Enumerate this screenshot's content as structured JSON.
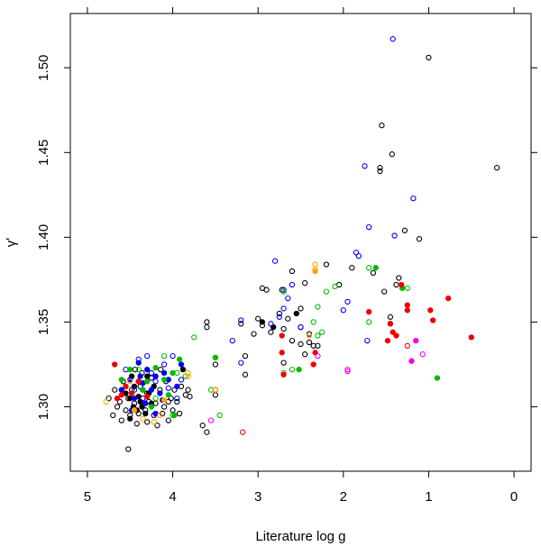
{
  "chart_data": {
    "type": "scatter",
    "xlabel": "Literature log g",
    "ylabel": "γ'",
    "xlim": [
      5.2,
      -0.2
    ],
    "ylim": [
      1.262,
      1.532
    ],
    "x_reversed": true,
    "x_ticks": [
      5,
      4,
      3,
      2,
      1,
      0
    ],
    "x_tick_labels": [
      "5",
      "4",
      "3",
      "2",
      "1",
      "0"
    ],
    "y_ticks": [
      1.3,
      1.35,
      1.4,
      1.45,
      1.5
    ],
    "y_tick_labels": [
      "1.30",
      "1.35",
      "1.40",
      "1.45",
      "1.50"
    ],
    "box": true,
    "grid": false,
    "legend": "none",
    "series": [
      {
        "color": "#000000",
        "marker": "open-circle",
        "points": [
          [
            1.0,
            1.506
          ],
          [
            1.55,
            1.466
          ],
          [
            0.2,
            1.441
          ],
          [
            1.43,
            1.449
          ],
          [
            1.57,
            1.441
          ],
          [
            1.57,
            1.439
          ],
          [
            1.28,
            1.404
          ],
          [
            1.11,
            1.399
          ],
          [
            1.9,
            1.382
          ],
          [
            2.2,
            1.384
          ],
          [
            1.35,
            1.376
          ],
          [
            1.38,
            1.372
          ],
          [
            1.52,
            1.368
          ],
          [
            2.05,
            1.372
          ],
          [
            2.45,
            1.373
          ],
          [
            2.6,
            1.38
          ],
          [
            2.72,
            1.369
          ],
          [
            2.9,
            1.369
          ],
          [
            2.95,
            1.37
          ],
          [
            3.2,
            1.349
          ],
          [
            3.0,
            1.352
          ],
          [
            2.85,
            1.344
          ],
          [
            2.7,
            1.346
          ],
          [
            2.6,
            1.339
          ],
          [
            2.5,
            1.347
          ],
          [
            2.4,
            1.343
          ],
          [
            2.3,
            1.336
          ],
          [
            2.5,
            1.337
          ],
          [
            3.6,
            1.347
          ],
          [
            3.6,
            1.35
          ],
          [
            3.05,
            1.343
          ],
          [
            2.95,
            1.348
          ],
          [
            2.75,
            1.355
          ],
          [
            2.65,
            1.352
          ],
          [
            2.5,
            1.358
          ],
          [
            2.35,
            1.336
          ],
          [
            3.15,
            1.33
          ],
          [
            3.15,
            1.319
          ],
          [
            3.5,
            1.325
          ],
          [
            3.5,
            1.31
          ],
          [
            3.5,
            1.307
          ],
          [
            3.6,
            1.285
          ],
          [
            3.65,
            1.289
          ],
          [
            4.52,
            1.275
          ],
          [
            1.45,
            1.353
          ],
          [
            1.45,
            1.349
          ],
          [
            1.65,
            1.379
          ],
          [
            2.7,
            1.326
          ],
          [
            2.4,
            1.338
          ],
          [
            2.45,
            1.331
          ],
          [
            4.75,
            1.305
          ],
          [
            4.7,
            1.295
          ],
          [
            4.68,
            1.31
          ],
          [
            4.65,
            1.3
          ],
          [
            4.6,
            1.292
          ],
          [
            4.55,
            1.298
          ],
          [
            4.52,
            1.305
          ],
          [
            4.5,
            1.295
          ],
          [
            4.48,
            1.31
          ],
          [
            4.45,
            1.302
          ],
          [
            4.42,
            1.29
          ],
          [
            4.4,
            1.296
          ],
          [
            4.38,
            1.312
          ],
          [
            4.35,
            1.305
          ],
          [
            4.32,
            1.298
          ],
          [
            4.3,
            1.291
          ],
          [
            4.28,
            1.303
          ],
          [
            4.25,
            1.317
          ],
          [
            4.22,
            1.295
          ],
          [
            4.2,
            1.302
          ],
          [
            4.18,
            1.289
          ],
          [
            4.15,
            1.31
          ],
          [
            4.12,
            1.296
          ],
          [
            4.1,
            1.3
          ],
          [
            4.08,
            1.315
          ],
          [
            4.05,
            1.292
          ],
          [
            4.02,
            1.305
          ],
          [
            4.0,
            1.298
          ],
          [
            3.98,
            1.31
          ],
          [
            3.95,
            1.303
          ],
          [
            3.92,
            1.296
          ],
          [
            3.9,
            1.312
          ],
          [
            3.85,
            1.307
          ],
          [
            3.8,
            1.306
          ],
          [
            4.58,
            1.315
          ],
          [
            4.36,
            1.32
          ],
          [
            4.14,
            1.322
          ],
          [
            4.44,
            1.322
          ],
          [
            3.82,
            1.31
          ],
          [
            4.62,
            1.303
          ],
          [
            4.3,
            1.308
          ],
          [
            4.05,
            1.303
          ]
        ]
      },
      {
        "color": "#000000",
        "marker": "filled-circle",
        "points": [
          [
            4.5,
            1.305
          ],
          [
            4.45,
            1.312
          ],
          [
            4.42,
            1.298
          ],
          [
            4.4,
            1.315
          ],
          [
            4.38,
            1.303
          ],
          [
            4.35,
            1.31
          ],
          [
            4.32,
            1.296
          ],
          [
            4.5,
            1.293
          ],
          [
            4.48,
            1.318
          ],
          [
            4.28,
            1.308
          ],
          [
            4.25,
            1.302
          ],
          [
            4.4,
            1.306
          ],
          [
            4.55,
            1.308
          ],
          [
            4.36,
            1.3
          ],
          [
            4.46,
            1.3
          ],
          [
            3.88,
            1.322
          ],
          [
            4.22,
            1.312
          ],
          [
            4.3,
            1.318
          ],
          [
            2.95,
            1.35
          ],
          [
            2.82,
            1.347
          ],
          [
            2.55,
            1.355
          ]
        ]
      },
      {
        "color": "#0000ee",
        "marker": "open-circle",
        "points": [
          [
            1.42,
            1.517
          ],
          [
            1.75,
            1.442
          ],
          [
            1.18,
            1.423
          ],
          [
            1.7,
            1.406
          ],
          [
            1.4,
            1.401
          ],
          [
            1.85,
            1.391
          ],
          [
            1.82,
            1.389
          ],
          [
            2.0,
            1.357
          ],
          [
            1.95,
            1.362
          ],
          [
            2.6,
            1.372
          ],
          [
            2.7,
            1.369
          ],
          [
            2.65,
            1.364
          ],
          [
            2.8,
            1.386
          ],
          [
            3.2,
            1.351
          ],
          [
            2.85,
            1.349
          ],
          [
            2.75,
            1.353
          ],
          [
            2.7,
            1.358
          ],
          [
            2.5,
            1.347
          ],
          [
            1.72,
            1.339
          ],
          [
            3.3,
            1.339
          ],
          [
            3.2,
            1.326
          ],
          [
            4.3,
            1.33
          ],
          [
            4.2,
            1.315
          ],
          [
            4.4,
            1.328
          ],
          [
            4.1,
            1.325
          ],
          [
            4.0,
            1.33
          ],
          [
            3.9,
            1.316
          ],
          [
            4.45,
            1.31
          ],
          [
            4.25,
            1.32
          ],
          [
            4.35,
            1.305
          ],
          [
            4.55,
            1.322
          ],
          [
            4.05,
            1.311
          ],
          [
            3.95,
            1.305
          ]
        ]
      },
      {
        "color": "#0000ee",
        "marker": "filled-circle",
        "points": [
          [
            4.4,
            1.326
          ],
          [
            4.3,
            1.322
          ],
          [
            4.2,
            1.318
          ],
          [
            4.5,
            1.316
          ],
          [
            4.1,
            1.32
          ],
          [
            4.35,
            1.314
          ],
          [
            4.25,
            1.31
          ],
          [
            4.45,
            1.305
          ],
          [
            4.15,
            1.308
          ],
          [
            4.05,
            1.316
          ],
          [
            3.95,
            1.312
          ],
          [
            4.6,
            1.31
          ],
          [
            4.48,
            1.298
          ],
          [
            4.32,
            1.302
          ],
          [
            3.9,
            1.325
          ],
          [
            4.2,
            1.296
          ],
          [
            4.38,
            1.318
          ],
          [
            4.12,
            1.304
          ]
        ]
      },
      {
        "color": "#00bb00",
        "marker": "open-circle",
        "points": [
          [
            1.7,
            1.382
          ],
          [
            2.1,
            1.371
          ],
          [
            2.2,
            1.368
          ],
          [
            2.7,
            1.368
          ],
          [
            2.3,
            1.359
          ],
          [
            2.25,
            1.344
          ],
          [
            2.35,
            1.35
          ],
          [
            1.7,
            1.35
          ],
          [
            1.25,
            1.37
          ],
          [
            2.3,
            1.342
          ],
          [
            2.6,
            1.322
          ],
          [
            3.75,
            1.341
          ],
          [
            3.5,
            1.329
          ],
          [
            3.45,
            1.295
          ],
          [
            3.55,
            1.31
          ],
          [
            2.7,
            1.32
          ],
          [
            4.4,
            1.322
          ],
          [
            4.1,
            1.33
          ],
          [
            3.95,
            1.32
          ],
          [
            4.2,
            1.305
          ],
          [
            3.85,
            1.318
          ],
          [
            4.0,
            1.295
          ],
          [
            4.55,
            1.312
          ]
        ]
      },
      {
        "color": "#00bb00",
        "marker": "filled-circle",
        "points": [
          [
            1.62,
            1.382
          ],
          [
            1.31,
            1.37
          ],
          [
            0.9,
            1.317
          ],
          [
            3.5,
            1.329
          ],
          [
            2.52,
            1.322
          ],
          [
            4.5,
            1.322
          ],
          [
            4.3,
            1.315
          ],
          [
            4.2,
            1.323
          ],
          [
            4.1,
            1.316
          ],
          [
            4.0,
            1.32
          ],
          [
            3.92,
            1.328
          ],
          [
            4.35,
            1.31
          ],
          [
            4.05,
            1.307
          ],
          [
            3.98,
            1.295
          ],
          [
            4.25,
            1.3
          ],
          [
            4.6,
            1.316
          ]
        ]
      },
      {
        "color": "#ee0000",
        "marker": "filled-circle",
        "points": [
          [
            0.77,
            1.364
          ],
          [
            1.32,
            1.372
          ],
          [
            1.25,
            1.36
          ],
          [
            1.25,
            1.357
          ],
          [
            1.7,
            1.356
          ],
          [
            1.45,
            1.349
          ],
          [
            0.98,
            1.357
          ],
          [
            0.95,
            1.351
          ],
          [
            1.48,
            1.339
          ],
          [
            1.42,
            1.344
          ],
          [
            1.38,
            1.342
          ],
          [
            0.5,
            1.341
          ],
          [
            2.33,
            1.332
          ],
          [
            2.35,
            1.325
          ],
          [
            2.72,
            1.342
          ],
          [
            2.72,
            1.332
          ],
          [
            2.7,
            1.319
          ],
          [
            4.68,
            1.325
          ],
          [
            4.65,
            1.305
          ],
          [
            4.6,
            1.307
          ],
          [
            4.55,
            1.312
          ],
          [
            4.4,
            1.315
          ],
          [
            4.3,
            1.306
          ],
          [
            4.48,
            1.308
          ]
        ]
      },
      {
        "color": "#ee0000",
        "marker": "open-circle",
        "points": [
          [
            3.18,
            1.285
          ],
          [
            3.5,
            1.31
          ],
          [
            1.25,
            1.336
          ]
        ]
      },
      {
        "color": "#ffa500",
        "marker": "open-circle",
        "points": [
          [
            2.33,
            1.384
          ],
          [
            2.33,
            1.381
          ],
          [
            3.5,
            1.31
          ],
          [
            3.82,
            1.32
          ],
          [
            3.82,
            1.318
          ],
          [
            4.78,
            1.303
          ],
          [
            4.22,
            1.291
          ],
          [
            4.15,
            1.295
          ],
          [
            4.35,
            1.293
          ],
          [
            2.4,
            1.342
          ],
          [
            4.5,
            1.315
          ]
        ]
      },
      {
        "color": "#ffa500",
        "marker": "filled-circle",
        "points": [
          [
            2.33,
            1.38
          ],
          [
            4.45,
            1.298
          ],
          [
            4.1,
            1.304
          ]
        ]
      },
      {
        "color": "#ee00ee",
        "marker": "open-circle",
        "points": [
          [
            1.07,
            1.331
          ],
          [
            1.95,
            1.322
          ],
          [
            1.95,
            1.321
          ],
          [
            2.3,
            1.33
          ],
          [
            3.55,
            1.292
          ]
        ]
      },
      {
        "color": "#ee00ee",
        "marker": "filled-circle",
        "points": [
          [
            1.2,
            1.327
          ],
          [
            1.15,
            1.339
          ]
        ]
      }
    ]
  }
}
